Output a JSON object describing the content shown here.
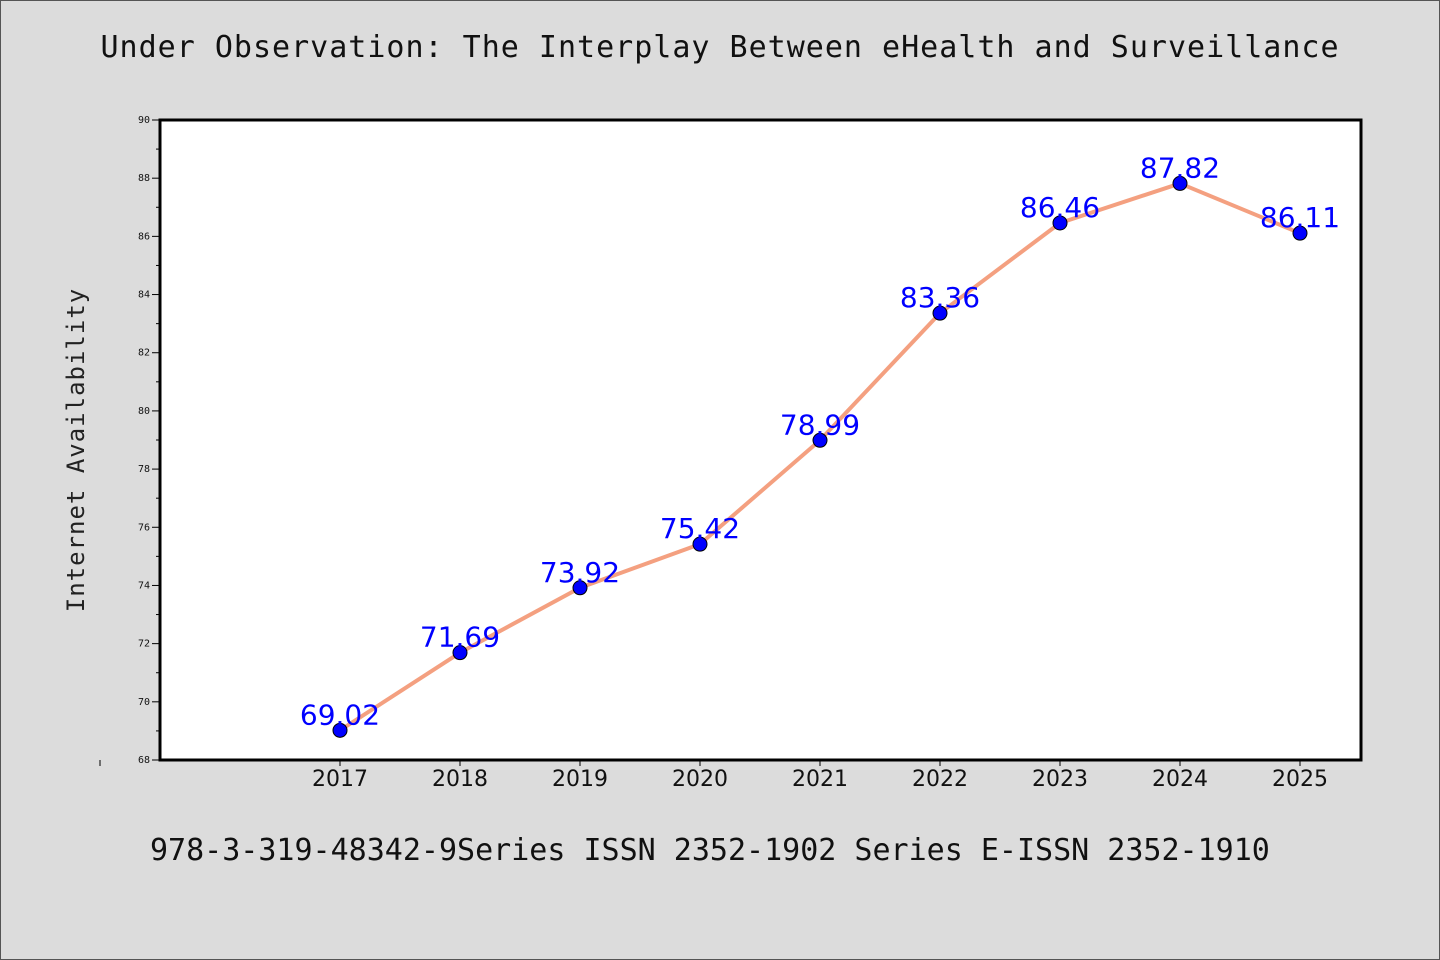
{
  "chart_data": {
    "type": "line",
    "title": "Under Observation: The Interplay Between eHealth and Surveillance",
    "xlabel": "",
    "ylabel": "Internet Availability",
    "categories": [
      "2017",
      "2018",
      "2019",
      "2020",
      "2021",
      "2022",
      "2023",
      "2024",
      "2025"
    ],
    "series": [
      {
        "values": [
          69.02,
          71.69,
          73.92,
          75.42,
          78.99,
          83.36,
          86.46,
          87.82,
          86.11
        ],
        "labels": [
          "69.02",
          "71.69",
          "73.92",
          "75.42",
          "78.99",
          "83.36",
          "86.46",
          "87.82",
          "86.11"
        ]
      }
    ],
    "ylim": [
      68,
      90
    ],
    "yticks": [
      "68",
      "70",
      "72",
      "74",
      "76",
      "78",
      "80",
      "82",
      "84",
      "86",
      "88",
      "90"
    ],
    "grid": false,
    "legend": "none",
    "colors": {
      "line": "#f4a080",
      "marker": "#0000ff",
      "label": "#0000ff",
      "plot_background": "#ffffff",
      "page_background": "#dcdcdc"
    }
  },
  "footer": {
    "text": "978-3-319-48342-9Series ISSN 2352-1902 Series E-ISSN 2352-1910"
  }
}
